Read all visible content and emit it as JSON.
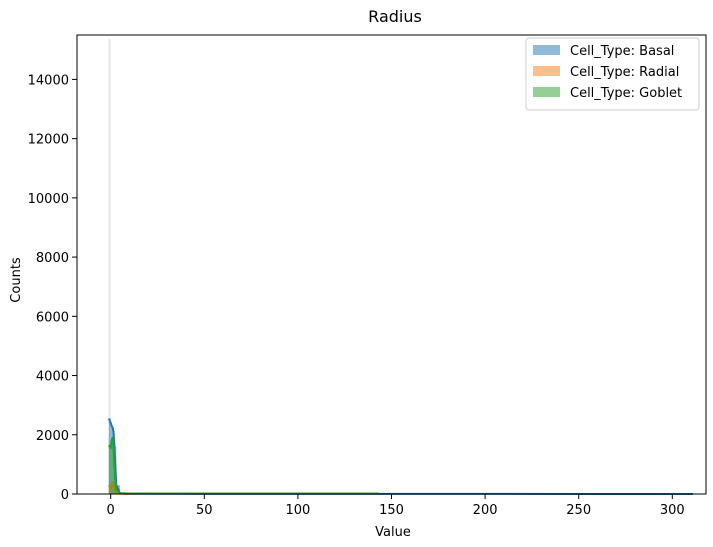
{
  "chart_data": {
    "type": "histogram",
    "title": "Radius",
    "xlabel": "Value",
    "ylabel": "Counts",
    "xlim": [
      -18,
      318
    ],
    "ylim": [
      0,
      15500
    ],
    "x_ticks": [
      0,
      50,
      100,
      150,
      200,
      250,
      300
    ],
    "y_ticks": [
      0,
      2000,
      4000,
      6000,
      8000,
      10000,
      12000,
      14000
    ],
    "grid": false,
    "legend_position": "top-right",
    "series": [
      {
        "name": "Cell_Type: Basal",
        "color": "#1f77b4",
        "bar_alpha": 0.5,
        "x": [
          -1,
          0,
          0.5,
          1,
          1.5,
          2,
          3,
          5,
          10,
          50,
          100,
          150,
          200,
          250,
          300,
          311
        ],
        "values": [
          2550,
          2400,
          2300,
          2250,
          2100,
          1600,
          300,
          20,
          8,
          5,
          4,
          3,
          3,
          2,
          2,
          1
        ]
      },
      {
        "name": "Cell_Type: Radial",
        "color": "#ff7f0e",
        "bar_alpha": 0.5,
        "x": [
          -1,
          0,
          0.5,
          1,
          1.5,
          2,
          3,
          5,
          10
        ],
        "values": [
          300,
          180,
          250,
          400,
          350,
          220,
          60,
          10,
          2
        ]
      },
      {
        "name": "Cell_Type: Goblet",
        "color": "#2ca02c",
        "bar_alpha": 0.5,
        "x": [
          -1,
          0,
          0.5,
          1,
          1.5,
          2,
          2.5,
          3,
          5,
          10,
          50,
          100,
          143
        ],
        "values": [
          1650,
          1550,
          1800,
          1900,
          1500,
          900,
          400,
          150,
          30,
          15,
          15,
          15,
          15
        ]
      }
    ]
  }
}
